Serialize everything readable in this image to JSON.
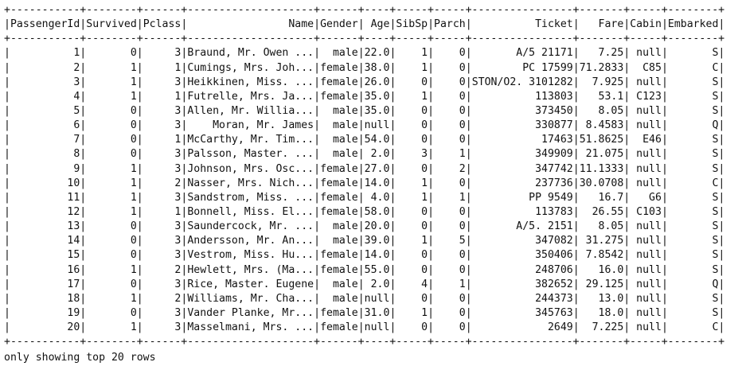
{
  "table": {
    "separator": "+-----------+--------+------+--------------------+------+----+-----+-----+----------------+-------+-----+--------+",
    "columns": [
      {
        "name": "PassengerId",
        "width": 11
      },
      {
        "name": "Survived",
        "width": 8
      },
      {
        "name": "Pclass",
        "width": 6
      },
      {
        "name": "Name",
        "width": 20
      },
      {
        "name": "Gender",
        "width": 6
      },
      {
        "name": "Age",
        "width": 4
      },
      {
        "name": "SibSp",
        "width": 5
      },
      {
        "name": "Parch",
        "width": 5
      },
      {
        "name": "Ticket",
        "width": 16
      },
      {
        "name": "Fare",
        "width": 7
      },
      {
        "name": "Cabin",
        "width": 5
      },
      {
        "name": "Embarked",
        "width": 8
      }
    ],
    "rows": [
      [
        "1",
        "0",
        "3",
        "Braund, Mr. Owen ...",
        "male",
        "22.0",
        "1",
        "0",
        "A/5 21171",
        "7.25",
        "null",
        "S"
      ],
      [
        "2",
        "1",
        "1",
        "Cumings, Mrs. Joh...",
        "female",
        "38.0",
        "1",
        "0",
        "PC 17599",
        "71.2833",
        "C85",
        "C"
      ],
      [
        "3",
        "1",
        "3",
        "Heikkinen, Miss. ...",
        "female",
        "26.0",
        "0",
        "0",
        "STON/O2. 3101282",
        "7.925",
        "null",
        "S"
      ],
      [
        "4",
        "1",
        "1",
        "Futrelle, Mrs. Ja...",
        "female",
        "35.0",
        "1",
        "0",
        "113803",
        "53.1",
        "C123",
        "S"
      ],
      [
        "5",
        "0",
        "3",
        "Allen, Mr. Willia...",
        "male",
        "35.0",
        "0",
        "0",
        "373450",
        "8.05",
        "null",
        "S"
      ],
      [
        "6",
        "0",
        "3",
        "Moran, Mr. James",
        "male",
        "null",
        "0",
        "0",
        "330877",
        "8.4583",
        "null",
        "Q"
      ],
      [
        "7",
        "0",
        "1",
        "McCarthy, Mr. Tim...",
        "male",
        "54.0",
        "0",
        "0",
        "17463",
        "51.8625",
        "E46",
        "S"
      ],
      [
        "8",
        "0",
        "3",
        "Palsson, Master. ...",
        "male",
        "2.0",
        "3",
        "1",
        "349909",
        "21.075",
        "null",
        "S"
      ],
      [
        "9",
        "1",
        "3",
        "Johnson, Mrs. Osc...",
        "female",
        "27.0",
        "0",
        "2",
        "347742",
        "11.1333",
        "null",
        "S"
      ],
      [
        "10",
        "1",
        "2",
        "Nasser, Mrs. Nich...",
        "female",
        "14.0",
        "1",
        "0",
        "237736",
        "30.0708",
        "null",
        "C"
      ],
      [
        "11",
        "1",
        "3",
        "Sandstrom, Miss. ...",
        "female",
        "4.0",
        "1",
        "1",
        "PP 9549",
        "16.7",
        "G6",
        "S"
      ],
      [
        "12",
        "1",
        "1",
        "Bonnell, Miss. El...",
        "female",
        "58.0",
        "0",
        "0",
        "113783",
        "26.55",
        "C103",
        "S"
      ],
      [
        "13",
        "0",
        "3",
        "Saundercock, Mr. ...",
        "male",
        "20.0",
        "0",
        "0",
        "A/5. 2151",
        "8.05",
        "null",
        "S"
      ],
      [
        "14",
        "0",
        "3",
        "Andersson, Mr. An...",
        "male",
        "39.0",
        "1",
        "5",
        "347082",
        "31.275",
        "null",
        "S"
      ],
      [
        "15",
        "0",
        "3",
        "Vestrom, Miss. Hu...",
        "female",
        "14.0",
        "0",
        "0",
        "350406",
        "7.8542",
        "null",
        "S"
      ],
      [
        "16",
        "1",
        "2",
        "Hewlett, Mrs. (Ma...",
        "female",
        "55.0",
        "0",
        "0",
        "248706",
        "16.0",
        "null",
        "S"
      ],
      [
        "17",
        "0",
        "3",
        "Rice, Master. Eugene",
        "male",
        "2.0",
        "4",
        "1",
        "382652",
        "29.125",
        "null",
        "Q"
      ],
      [
        "18",
        "1",
        "2",
        "Williams, Mr. Cha...",
        "male",
        "null",
        "0",
        "0",
        "244373",
        "13.0",
        "null",
        "S"
      ],
      [
        "19",
        "0",
        "3",
        "Vander Planke, Mr...",
        "female",
        "31.0",
        "1",
        "0",
        "345763",
        "18.0",
        "null",
        "S"
      ],
      [
        "20",
        "1",
        "3",
        "Masselmani, Mrs. ...",
        "female",
        "null",
        "0",
        "0",
        "2649",
        "7.225",
        "null",
        "C"
      ]
    ]
  },
  "footer": {
    "text": "only showing top 20 rows"
  }
}
